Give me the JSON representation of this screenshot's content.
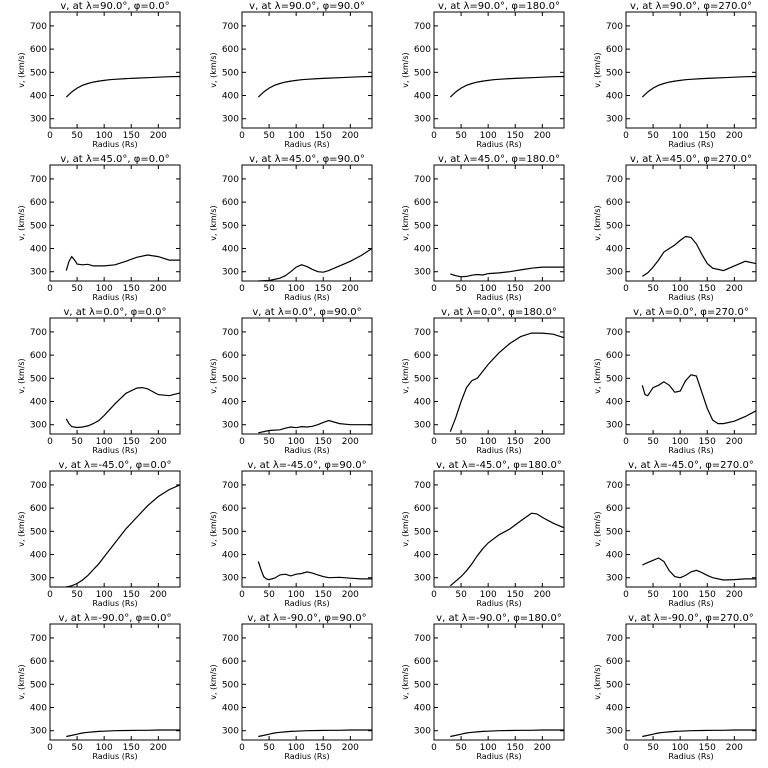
{
  "chart_data": [
    {
      "type": "line",
      "title": "v, at λ=90.0°, φ=0.0°",
      "xlabel": "Radius (Rs)",
      "ylabel": "v, (km/s)",
      "xlim": [
        0,
        240
      ],
      "ylim": [
        260,
        760
      ],
      "xticks": [
        0,
        50,
        100,
        150,
        200
      ],
      "yticks": [
        300,
        400,
        500,
        600,
        700
      ],
      "x": [
        30,
        40,
        50,
        60,
        70,
        80,
        90,
        100,
        110,
        120,
        140,
        160,
        180,
        200,
        220,
        240
      ],
      "y": [
        393,
        415,
        432,
        444,
        452,
        458,
        462,
        465,
        468,
        470,
        473,
        475,
        477,
        479,
        481,
        482
      ]
    },
    {
      "type": "line",
      "title": "v, at λ=90.0°, φ=90.0°",
      "xlabel": "Radius (Rs)",
      "ylabel": "v, (km/s)",
      "xlim": [
        0,
        240
      ],
      "ylim": [
        260,
        760
      ],
      "xticks": [
        0,
        50,
        100,
        150,
        200
      ],
      "yticks": [
        300,
        400,
        500,
        600,
        700
      ],
      "x": [
        30,
        40,
        50,
        60,
        70,
        80,
        90,
        100,
        110,
        120,
        140,
        160,
        180,
        200,
        220,
        240
      ],
      "y": [
        393,
        415,
        432,
        444,
        452,
        458,
        462,
        465,
        468,
        470,
        473,
        475,
        477,
        479,
        481,
        482
      ]
    },
    {
      "type": "line",
      "title": "v, at λ=90.0°, φ=180.0°",
      "xlabel": "Radius (Rs)",
      "ylabel": "v, (km/s)",
      "xlim": [
        0,
        240
      ],
      "ylim": [
        260,
        760
      ],
      "xticks": [
        0,
        50,
        100,
        150,
        200
      ],
      "yticks": [
        300,
        400,
        500,
        600,
        700
      ],
      "x": [
        30,
        40,
        50,
        60,
        70,
        80,
        90,
        100,
        110,
        120,
        140,
        160,
        180,
        200,
        220,
        240
      ],
      "y": [
        393,
        415,
        432,
        444,
        452,
        458,
        462,
        465,
        468,
        470,
        473,
        475,
        477,
        479,
        481,
        482
      ]
    },
    {
      "type": "line",
      "title": "v, at λ=90.0°, φ=270.0°",
      "xlabel": "Radius (Rs)",
      "ylabel": "v, (km/s)",
      "xlim": [
        0,
        240
      ],
      "ylim": [
        260,
        760
      ],
      "xticks": [
        0,
        50,
        100,
        150,
        200
      ],
      "yticks": [
        300,
        400,
        500,
        600,
        700
      ],
      "x": [
        30,
        40,
        50,
        60,
        70,
        80,
        90,
        100,
        110,
        120,
        140,
        160,
        180,
        200,
        220,
        240
      ],
      "y": [
        393,
        415,
        432,
        444,
        452,
        458,
        462,
        465,
        468,
        470,
        473,
        475,
        477,
        479,
        481,
        482
      ]
    },
    {
      "type": "line",
      "title": "v, at λ=45.0°, φ=0.0°",
      "xlabel": "Radius (Rs)",
      "ylabel": "v, (km/s)",
      "xlim": [
        0,
        240
      ],
      "ylim": [
        260,
        760
      ],
      "xticks": [
        0,
        50,
        100,
        150,
        200
      ],
      "yticks": [
        300,
        400,
        500,
        600,
        700
      ],
      "x": [
        30,
        35,
        40,
        45,
        50,
        60,
        70,
        80,
        100,
        120,
        140,
        160,
        180,
        200,
        220,
        240
      ],
      "y": [
        305,
        345,
        365,
        352,
        333,
        330,
        332,
        325,
        325,
        330,
        345,
        362,
        372,
        365,
        350,
        350
      ]
    },
    {
      "type": "line",
      "title": "v, at λ=45.0°, φ=90.0°",
      "xlabel": "Radius (Rs)",
      "ylabel": "v, (km/s)",
      "xlim": [
        0,
        240
      ],
      "ylim": [
        260,
        760
      ],
      "xticks": [
        0,
        50,
        100,
        150,
        200
      ],
      "yticks": [
        300,
        400,
        500,
        600,
        700
      ],
      "x": [
        30,
        50,
        70,
        80,
        90,
        100,
        110,
        120,
        130,
        140,
        150,
        160,
        180,
        200,
        220,
        240
      ],
      "y": [
        260,
        262,
        272,
        283,
        300,
        320,
        330,
        322,
        310,
        300,
        298,
        305,
        325,
        345,
        370,
        400
      ]
    },
    {
      "type": "line",
      "title": "v, at λ=45.0°, φ=180.0°",
      "xlabel": "Radius (Rs)",
      "ylabel": "v, (km/s)",
      "xlim": [
        0,
        240
      ],
      "ylim": [
        260,
        760
      ],
      "xticks": [
        0,
        50,
        100,
        150,
        200
      ],
      "yticks": [
        300,
        400,
        500,
        600,
        700
      ],
      "x": [
        30,
        40,
        50,
        60,
        70,
        80,
        90,
        100,
        120,
        140,
        160,
        180,
        200,
        220,
        240
      ],
      "y": [
        290,
        283,
        278,
        280,
        285,
        288,
        286,
        292,
        295,
        300,
        308,
        315,
        320,
        320,
        320
      ]
    },
    {
      "type": "line",
      "title": "v, at λ=45.0°, φ=270.0°",
      "xlabel": "Radius (Rs)",
      "ylabel": "v, (km/s)",
      "xlim": [
        0,
        240
      ],
      "ylim": [
        260,
        760
      ],
      "xticks": [
        0,
        50,
        100,
        150,
        200
      ],
      "yticks": [
        300,
        400,
        500,
        600,
        700
      ],
      "x": [
        30,
        40,
        50,
        60,
        70,
        80,
        90,
        100,
        110,
        120,
        130,
        140,
        150,
        160,
        180,
        200,
        220,
        240
      ],
      "y": [
        280,
        295,
        320,
        350,
        385,
        400,
        415,
        435,
        452,
        448,
        420,
        375,
        335,
        315,
        305,
        325,
        345,
        335
      ]
    },
    {
      "type": "line",
      "title": "v, at λ=0.0°, φ=0.0°",
      "xlabel": "Radius (Rs)",
      "ylabel": "v, (km/s)",
      "xlim": [
        0,
        240
      ],
      "ylim": [
        260,
        760
      ],
      "xticks": [
        0,
        50,
        100,
        150,
        200
      ],
      "yticks": [
        300,
        400,
        500,
        600,
        700
      ],
      "x": [
        30,
        35,
        40,
        50,
        60,
        70,
        80,
        90,
        100,
        120,
        140,
        160,
        170,
        180,
        200,
        220,
        240
      ],
      "y": [
        325,
        305,
        292,
        288,
        290,
        295,
        305,
        318,
        340,
        390,
        435,
        458,
        460,
        455,
        430,
        425,
        437
      ]
    },
    {
      "type": "line",
      "title": "v, at λ=0.0°, φ=90.0°",
      "xlabel": "Radius (Rs)",
      "ylabel": "v, (km/s)",
      "xlim": [
        0,
        240
      ],
      "ylim": [
        260,
        760
      ],
      "xticks": [
        0,
        50,
        100,
        150,
        200
      ],
      "yticks": [
        300,
        400,
        500,
        600,
        700
      ],
      "x": [
        30,
        50,
        70,
        80,
        90,
        100,
        110,
        120,
        130,
        140,
        150,
        160,
        180,
        200,
        220,
        240
      ],
      "y": [
        265,
        275,
        278,
        285,
        290,
        287,
        292,
        290,
        293,
        300,
        310,
        318,
        305,
        300,
        300,
        300
      ]
    },
    {
      "type": "line",
      "title": "v, at λ=0.0°, φ=180.0°",
      "xlabel": "Radius (Rs)",
      "ylabel": "v, (km/s)",
      "xlim": [
        0,
        240
      ],
      "ylim": [
        260,
        760
      ],
      "xticks": [
        0,
        50,
        100,
        150,
        200
      ],
      "yticks": [
        300,
        400,
        500,
        600,
        700
      ],
      "x": [
        30,
        40,
        50,
        60,
        70,
        80,
        100,
        120,
        140,
        160,
        180,
        200,
        220,
        240
      ],
      "y": [
        270,
        330,
        400,
        460,
        490,
        500,
        560,
        610,
        650,
        680,
        695,
        695,
        690,
        675
      ]
    },
    {
      "type": "line",
      "title": "v, at λ=0.0°, φ=270.0°",
      "xlabel": "Radius (Rs)",
      "ylabel": "v, (km/s)",
      "xlim": [
        0,
        240
      ],
      "ylim": [
        260,
        760
      ],
      "xticks": [
        0,
        50,
        100,
        150,
        200
      ],
      "yticks": [
        300,
        400,
        500,
        600,
        700
      ],
      "x": [
        30,
        35,
        40,
        50,
        60,
        70,
        80,
        90,
        100,
        110,
        120,
        130,
        140,
        150,
        160,
        170,
        180,
        200,
        220,
        240
      ],
      "y": [
        470,
        430,
        425,
        460,
        470,
        485,
        470,
        440,
        445,
        490,
        515,
        510,
        440,
        370,
        320,
        305,
        305,
        315,
        335,
        360
      ]
    },
    {
      "type": "line",
      "title": "v, at λ=-45.0°, φ=0.0°",
      "xlabel": "Radius (Rs)",
      "ylabel": "v, (km/s)",
      "xlim": [
        0,
        240
      ],
      "ylim": [
        260,
        760
      ],
      "xticks": [
        0,
        50,
        100,
        150,
        200
      ],
      "yticks": [
        300,
        400,
        500,
        600,
        700
      ],
      "x": [
        30,
        40,
        50,
        60,
        70,
        80,
        90,
        100,
        120,
        140,
        160,
        180,
        200,
        220,
        240
      ],
      "y": [
        260,
        265,
        275,
        290,
        310,
        335,
        360,
        390,
        450,
        510,
        560,
        610,
        650,
        680,
        700
      ]
    },
    {
      "type": "line",
      "title": "v, at λ=-45.0°, φ=90.0°",
      "xlabel": "Radius (Rs)",
      "ylabel": "v, (km/s)",
      "xlim": [
        0,
        240
      ],
      "ylim": [
        260,
        760
      ],
      "xticks": [
        0,
        50,
        100,
        150,
        200
      ],
      "yticks": [
        300,
        400,
        500,
        600,
        700
      ],
      "x": [
        30,
        35,
        40,
        45,
        50,
        60,
        70,
        80,
        90,
        100,
        110,
        120,
        130,
        140,
        150,
        160,
        180,
        200,
        220,
        240
      ],
      "y": [
        370,
        335,
        305,
        295,
        292,
        298,
        312,
        315,
        308,
        315,
        318,
        325,
        320,
        312,
        305,
        300,
        302,
        298,
        295,
        295
      ]
    },
    {
      "type": "line",
      "title": "v, at λ=-45.0°, φ=180.0°",
      "xlabel": "Radius (Rs)",
      "ylabel": "v, (km/s)",
      "xlim": [
        0,
        240
      ],
      "ylim": [
        260,
        760
      ],
      "xticks": [
        0,
        50,
        100,
        150,
        200
      ],
      "yticks": [
        300,
        400,
        500,
        600,
        700
      ],
      "x": [
        30,
        40,
        50,
        60,
        70,
        80,
        90,
        100,
        120,
        140,
        160,
        180,
        190,
        200,
        220,
        240
      ],
      "y": [
        265,
        285,
        305,
        330,
        360,
        395,
        425,
        450,
        485,
        510,
        545,
        578,
        575,
        560,
        535,
        515
      ]
    },
    {
      "type": "line",
      "title": "v, at λ=-45.0°, φ=270.0°",
      "xlabel": "Radius (Rs)",
      "ylabel": "v, (km/s)",
      "xlim": [
        0,
        240
      ],
      "ylim": [
        260,
        760
      ],
      "xticks": [
        0,
        50,
        100,
        150,
        200
      ],
      "yticks": [
        300,
        400,
        500,
        600,
        700
      ],
      "x": [
        30,
        40,
        50,
        60,
        70,
        80,
        90,
        100,
        110,
        120,
        130,
        140,
        150,
        160,
        180,
        200,
        220,
        240
      ],
      "y": [
        355,
        365,
        375,
        385,
        370,
        330,
        305,
        300,
        310,
        325,
        332,
        322,
        310,
        300,
        290,
        292,
        295,
        295
      ]
    },
    {
      "type": "line",
      "title": "v, at λ=-90.0°, φ=0.0°",
      "xlabel": "Radius (Rs)",
      "ylabel": "v, (km/s)",
      "xlim": [
        0,
        240
      ],
      "ylim": [
        260,
        760
      ],
      "xticks": [
        0,
        50,
        100,
        150,
        200
      ],
      "yticks": [
        300,
        400,
        500,
        600,
        700
      ],
      "x": [
        30,
        40,
        50,
        60,
        70,
        80,
        90,
        100,
        120,
        140,
        160,
        180,
        200,
        220,
        240
      ],
      "y": [
        275,
        280,
        285,
        290,
        293,
        295,
        297,
        298,
        300,
        301,
        302,
        302,
        303,
        303,
        303
      ]
    },
    {
      "type": "line",
      "title": "v, at λ=-90.0°, φ=90.0°",
      "xlabel": "Radius (Rs)",
      "ylabel": "v, (km/s)",
      "xlim": [
        0,
        240
      ],
      "ylim": [
        260,
        760
      ],
      "xticks": [
        0,
        50,
        100,
        150,
        200
      ],
      "yticks": [
        300,
        400,
        500,
        600,
        700
      ],
      "x": [
        30,
        40,
        50,
        60,
        70,
        80,
        90,
        100,
        120,
        140,
        160,
        180,
        200,
        220,
        240
      ],
      "y": [
        275,
        280,
        285,
        290,
        293,
        295,
        297,
        298,
        300,
        301,
        302,
        302,
        303,
        303,
        303
      ]
    },
    {
      "type": "line",
      "title": "v, at λ=-90.0°, φ=180.0°",
      "xlabel": "Radius (Rs)",
      "ylabel": "v, (km/s)",
      "xlim": [
        0,
        240
      ],
      "ylim": [
        260,
        760
      ],
      "xticks": [
        0,
        50,
        100,
        150,
        200
      ],
      "yticks": [
        300,
        400,
        500,
        600,
        700
      ],
      "x": [
        30,
        40,
        50,
        60,
        70,
        80,
        90,
        100,
        120,
        140,
        160,
        180,
        200,
        220,
        240
      ],
      "y": [
        275,
        280,
        285,
        290,
        293,
        295,
        297,
        298,
        300,
        301,
        302,
        302,
        303,
        303,
        303
      ]
    },
    {
      "type": "line",
      "title": "v, at λ=-90.0°, φ=270.0°",
      "xlabel": "Radius (Rs)",
      "ylabel": "v, (km/s)",
      "xlim": [
        0,
        240
      ],
      "ylim": [
        260,
        760
      ],
      "xticks": [
        0,
        50,
        100,
        150,
        200
      ],
      "yticks": [
        300,
        400,
        500,
        600,
        700
      ],
      "x": [
        30,
        40,
        50,
        60,
        70,
        80,
        90,
        100,
        120,
        140,
        160,
        180,
        200,
        220,
        240
      ],
      "y": [
        275,
        280,
        285,
        290,
        293,
        295,
        297,
        298,
        300,
        301,
        302,
        302,
        303,
        303,
        303
      ]
    }
  ]
}
